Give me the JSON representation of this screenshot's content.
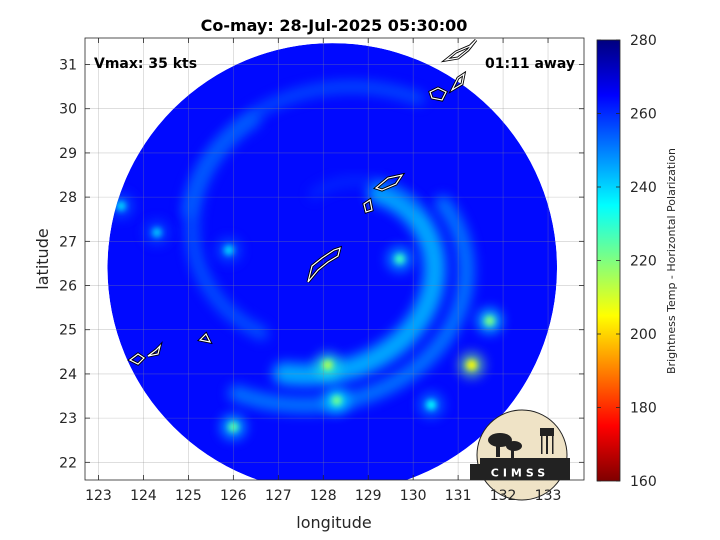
{
  "chart_data": {
    "type": "heatmap",
    "title": "Co-may: 28-Jul-2025 05:30:00",
    "xlabel": "longitude",
    "ylabel": "latitude",
    "xlim": [
      122.7,
      133.8
    ],
    "ylim": [
      21.6,
      31.6
    ],
    "x_ticks": [
      123,
      124,
      125,
      126,
      127,
      128,
      129,
      130,
      131,
      132,
      133
    ],
    "y_ticks": [
      22,
      23,
      24,
      25,
      26,
      27,
      28,
      29,
      30,
      31
    ],
    "grid": true,
    "colorbar": {
      "label": "Brightness Temp - Horizontal Polarization",
      "min": 160,
      "max": 280,
      "ticks": [
        160,
        180,
        200,
        220,
        240,
        260,
        280
      ],
      "colors": [
        "#7f0000",
        "#ff0000",
        "#ff8000",
        "#ffff00",
        "#80ff80",
        "#00ffff",
        "#0080ff",
        "#0000ff",
        "#00007f"
      ]
    },
    "swath": {
      "center_lon": 128.2,
      "center_lat": 26.4,
      "radius_deg": 5.0,
      "background_value": 264
    },
    "features": [
      {
        "lon": 129.7,
        "lat": 26.6,
        "value": 228
      },
      {
        "lon": 131.3,
        "lat": 24.2,
        "value": 205
      },
      {
        "lon": 128.1,
        "lat": 24.2,
        "value": 215
      },
      {
        "lon": 126.0,
        "lat": 22.8,
        "value": 225
      },
      {
        "lon": 128.3,
        "lat": 23.4,
        "value": 222
      },
      {
        "lon": 131.7,
        "lat": 25.2,
        "value": 220
      },
      {
        "lon": 130.4,
        "lat": 23.3,
        "value": 235
      },
      {
        "lon": 123.5,
        "lat": 27.8,
        "value": 240
      },
      {
        "lon": 124.3,
        "lat": 27.2,
        "value": 242
      },
      {
        "lon": 125.9,
        "lat": 26.8,
        "value": 240
      }
    ],
    "annotations": {
      "vmax": "Vmax: 35 kts",
      "time_away": "01:11 away"
    },
    "logo_text": "CIMSS"
  }
}
